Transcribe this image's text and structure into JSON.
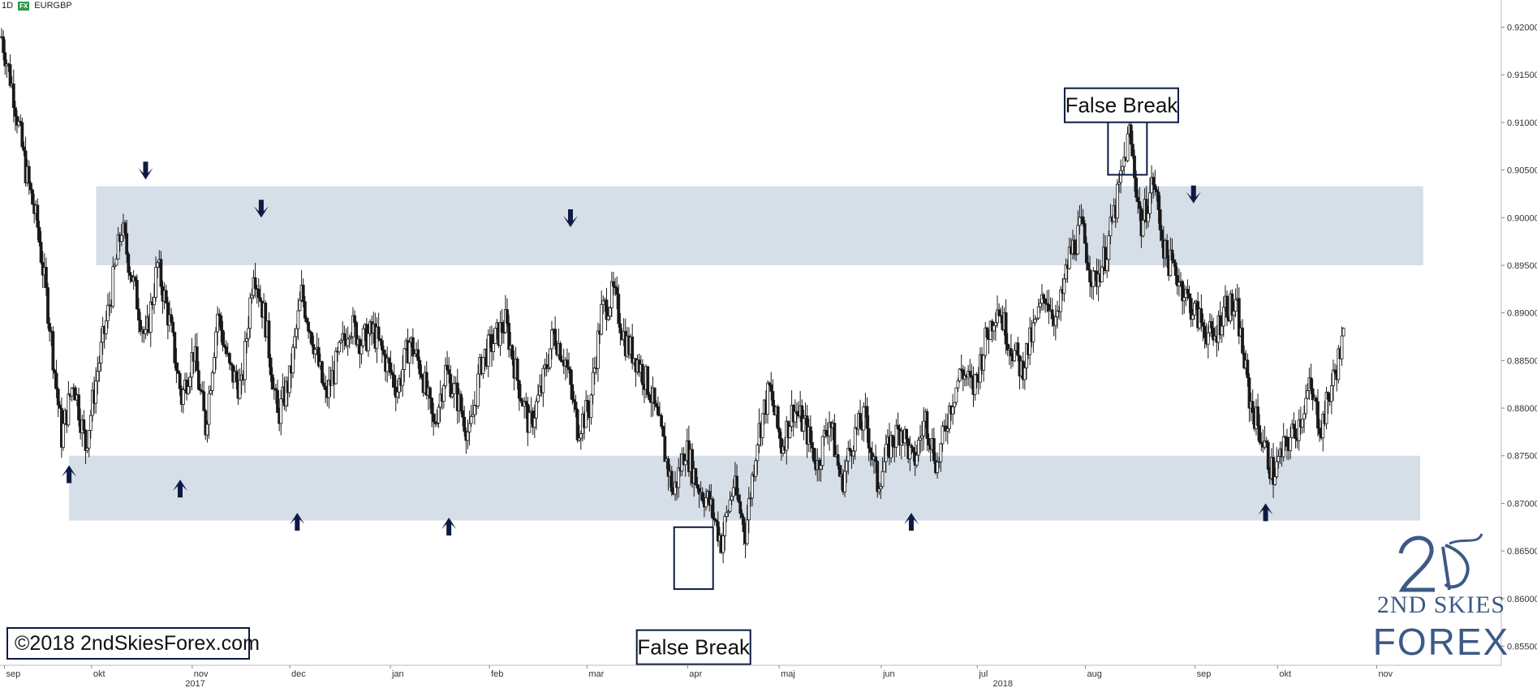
{
  "header": {
    "timeframe": "1D",
    "badge": "FX",
    "symbol": "EURGBP"
  },
  "copyright": "©2018 2ndSkiesForex.com",
  "logo": {
    "line1": "2ND SKIES",
    "line2": "FOREX",
    "color": "#3d5a86"
  },
  "colors": {
    "zone": "#d6dee8",
    "candle_up": "#ffffff",
    "candle_down": "#1a1a1a",
    "wick": "#1a1a1a",
    "arrow": "#0d1a44",
    "box": "#0d1a44"
  },
  "chart_data": {
    "type": "candlestick",
    "symbol": "EURGBP",
    "timeframe": "1D",
    "ylim": [
      0.853,
      0.922
    ],
    "y_ticks": [
      "0.92000",
      "0.91500",
      "0.91000",
      "0.90500",
      "0.90000",
      "0.89500",
      "0.89000",
      "0.88500",
      "0.88000",
      "0.87500",
      "0.87000",
      "0.86500",
      "0.86000",
      "0.85500"
    ],
    "x_months": [
      "sep",
      "okt",
      "nov",
      "dec",
      "jan",
      "feb",
      "mar",
      "apr",
      "maj",
      "jun",
      "jul",
      "aug",
      "sep",
      "okt",
      "nov"
    ],
    "x_years": [
      "2017",
      "2018"
    ],
    "zones": [
      {
        "name": "resistance",
        "from": 0.895,
        "to": 0.9033
      },
      {
        "name": "support",
        "from": 0.8682,
        "to": 0.875
      }
    ],
    "path": [
      0.919,
      0.913,
      0.905,
      0.899,
      0.889,
      0.877,
      0.883,
      0.876,
      0.884,
      0.891,
      0.899,
      0.893,
      0.887,
      0.895,
      0.889,
      0.881,
      0.886,
      0.878,
      0.89,
      0.884,
      0.882,
      0.895,
      0.889,
      0.879,
      0.883,
      0.892,
      0.887,
      0.881,
      0.885,
      0.889,
      0.887,
      0.888,
      0.885,
      0.882,
      0.887,
      0.884,
      0.878,
      0.884,
      0.881,
      0.877,
      0.885,
      0.887,
      0.889,
      0.883,
      0.878,
      0.882,
      0.888,
      0.885,
      0.878,
      0.88,
      0.89,
      0.892,
      0.887,
      0.885,
      0.882,
      0.877,
      0.871,
      0.876,
      0.872,
      0.87,
      0.866,
      0.872,
      0.867,
      0.877,
      0.882,
      0.876,
      0.88,
      0.878,
      0.874,
      0.879,
      0.872,
      0.877,
      0.879,
      0.872,
      0.876,
      0.878,
      0.874,
      0.879,
      0.874,
      0.88,
      0.884,
      0.882,
      0.887,
      0.891,
      0.887,
      0.884,
      0.888,
      0.892,
      0.889,
      0.896,
      0.899,
      0.893,
      0.896,
      0.902,
      0.909,
      0.899,
      0.904,
      0.896,
      0.894,
      0.891,
      0.889,
      0.887,
      0.891,
      0.89,
      0.881,
      0.877,
      0.873,
      0.876,
      0.878,
      0.882,
      0.878,
      0.883,
      0.888
    ],
    "annotations": [
      {
        "type": "label",
        "text": "False Break",
        "x_frac": 0.747,
        "price": 0.9118
      },
      {
        "type": "label",
        "text": "False Break",
        "x_frac": 0.462,
        "price": 0.8549
      },
      {
        "type": "box",
        "x_frac": 0.751,
        "price_top": 0.911,
        "price_bottom": 0.9045
      },
      {
        "type": "box",
        "x_frac": 0.462,
        "price_top": 0.8675,
        "price_bottom": 0.861
      }
    ],
    "arrows_down": [
      0.097,
      0.174,
      0.38,
      0.795
    ],
    "arrows_up": [
      0.046,
      0.12,
      0.198,
      0.299,
      0.607,
      0.843
    ]
  }
}
